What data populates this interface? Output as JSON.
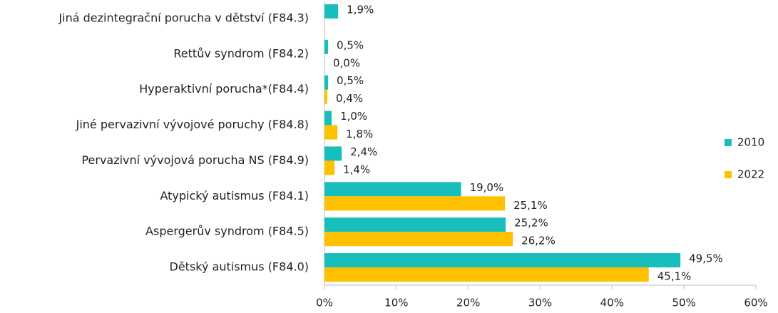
{
  "chart_data": {
    "type": "bar",
    "orientation": "horizontal",
    "categories": [
      "Jiná dezintegrační porucha v dětství (F84.3)",
      "Rettův syndrom (F84.2)",
      "Hyperaktivní porucha*(F84.4)",
      "Jiné pervazivní vývojové poruchy (F84.8)",
      "Pervazivní vývojová porucha NS (F84.9)",
      "Atypický autismus (F84.1)",
      "Aspergerův syndrom (F84.5)",
      "Dětský autismus (F84.0)"
    ],
    "series": [
      {
        "name": "2010",
        "color": "#17bebb",
        "values": [
          1.9,
          0.5,
          0.5,
          1.0,
          2.4,
          19.0,
          25.2,
          49.5
        ],
        "value_labels": [
          "1,9%",
          "0,5%",
          "0,5%",
          "1,0%",
          "2,4%",
          "19,0%",
          "25,2%",
          "49,5%"
        ]
      },
      {
        "name": "2022",
        "color": "#ffc000",
        "values": [
          null,
          0.0,
          0.4,
          1.8,
          1.4,
          25.1,
          26.2,
          45.1
        ],
        "value_labels": [
          null,
          "0,0%",
          "0,4%",
          "1,8%",
          "1,4%",
          "25,1%",
          "26,2%",
          "45,1%"
        ]
      }
    ],
    "xlim": [
      0,
      60
    ],
    "xticks": [
      {
        "value": 0,
        "label": "0%"
      },
      {
        "value": 10,
        "label": "10%"
      },
      {
        "value": 20,
        "label": "20%"
      },
      {
        "value": 30,
        "label": "30%"
      },
      {
        "value": 40,
        "label": "40%"
      },
      {
        "value": 50,
        "label": "50%"
      },
      {
        "value": 60,
        "label": "60%"
      }
    ],
    "legend": "right"
  }
}
